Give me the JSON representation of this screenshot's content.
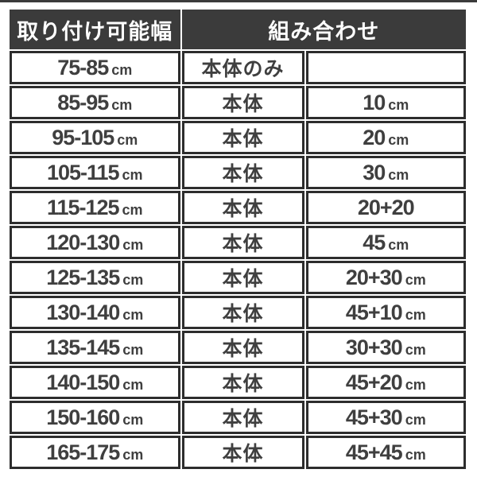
{
  "page": {
    "background": "#ffffff",
    "top_rule_color": "#3b3b3b"
  },
  "colors": {
    "header_bg": "#3b3b3b",
    "header_text": "#ffffff",
    "cell_border": "#2d2d2d",
    "text": "#3f3f3f"
  },
  "table": {
    "header": {
      "width_col": "取り付け可能幅",
      "combination_col": "組み合わせ"
    },
    "rows": [
      {
        "range": "75-85",
        "range_unit": "cm",
        "base": "本体のみ",
        "addon": "",
        "addon_unit": ""
      },
      {
        "range": "85-95",
        "range_unit": "cm",
        "base": "本体",
        "addon": "10",
        "addon_unit": "cm"
      },
      {
        "range": "95-105",
        "range_unit": "cm",
        "base": "本体",
        "addon": "20",
        "addon_unit": "cm"
      },
      {
        "range": "105-115",
        "range_unit": "cm",
        "base": "本体",
        "addon": "30",
        "addon_unit": "cm"
      },
      {
        "range": "115-125",
        "range_unit": "cm",
        "base": "本体",
        "addon": "20+20",
        "addon_unit": ""
      },
      {
        "range": "120-130",
        "range_unit": "cm",
        "base": "本体",
        "addon": "45",
        "addon_unit": "cm"
      },
      {
        "range": "125-135",
        "range_unit": "cm",
        "base": "本体",
        "addon": "20+30",
        "addon_unit": "cm"
      },
      {
        "range": "130-140",
        "range_unit": "cm",
        "base": "本体",
        "addon": "45+10",
        "addon_unit": "cm"
      },
      {
        "range": "135-145",
        "range_unit": "cm",
        "base": "本体",
        "addon": "30+30",
        "addon_unit": "cm"
      },
      {
        "range": "140-150",
        "range_unit": "cm",
        "base": "本体",
        "addon": "45+20",
        "addon_unit": "cm"
      },
      {
        "range": "150-160",
        "range_unit": "cm",
        "base": "本体",
        "addon": "45+30",
        "addon_unit": "cm"
      },
      {
        "range": "165-175",
        "range_unit": "cm",
        "base": "本体",
        "addon": "45+45",
        "addon_unit": "cm"
      }
    ]
  }
}
